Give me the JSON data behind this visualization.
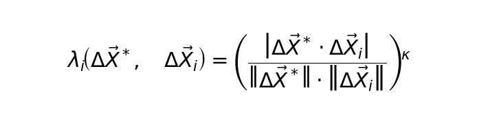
{
  "formula": "$\\lambda_i\\!\\left(\\Delta\\vec{X}^*,\\quad \\Delta\\vec{X}_i\\right) = \\left(\\dfrac{\\left|\\Delta\\vec{X}^* \\cdot \\Delta\\vec{X}_i\\right|}{\\left\\|\\Delta\\vec{X}^*\\right\\| \\cdot \\left\\|\\Delta\\vec{X}_i\\right\\|}\\right)^{\\!\\kappa}$",
  "bg_color": "#ffffff",
  "text_color": "#000000",
  "fontsize": 22,
  "fig_width": 6.94,
  "fig_height": 1.83,
  "dpi": 100
}
